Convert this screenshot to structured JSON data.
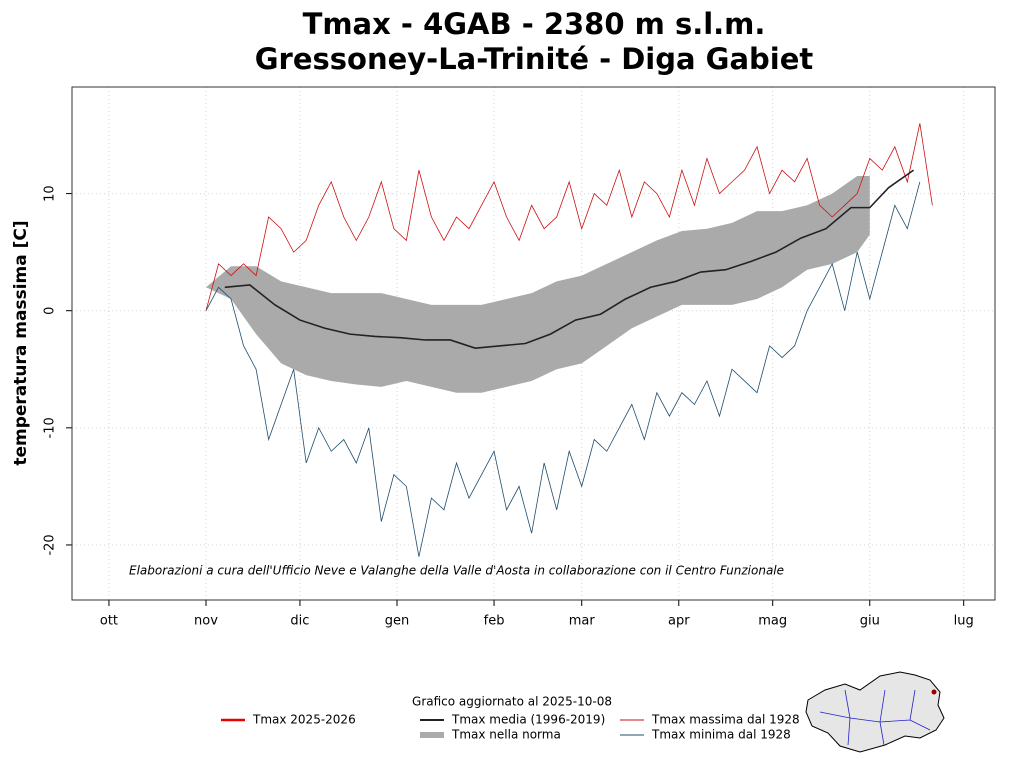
{
  "chart_data": {
    "type": "line",
    "title": "Tmax - 4GAB - 2380 m s.l.m.",
    "subtitle": "Gressoney-La-Trinité - Diga Gabiet",
    "ylabel": "temperatura massima [C]",
    "annotation": "Elaborazioni a cura dell'Ufficio Neve e Valanghe della Valle d'Aosta in collaborazione con il Centro Funzionale",
    "update_note": "Grafico aggiornato al 2025-10-08",
    "xlim": [
      -11.8,
      283
    ],
    "ylim": [
      -24.7,
      19.1
    ],
    "xticks": [
      {
        "value": 0,
        "label": "ott"
      },
      {
        "value": 31,
        "label": "nov"
      },
      {
        "value": 61,
        "label": "dic"
      },
      {
        "value": 92,
        "label": "gen"
      },
      {
        "value": 123,
        "label": "feb"
      },
      {
        "value": 151,
        "label": "mar"
      },
      {
        "value": 182,
        "label": "apr"
      },
      {
        "value": 212,
        "label": "mag"
      },
      {
        "value": 243,
        "label": "giu"
      },
      {
        "value": 273,
        "label": "lug"
      }
    ],
    "yticks": [
      -20,
      -10,
      0,
      10
    ],
    "grid": true,
    "band": {
      "name": "Tmax nella norma",
      "color": "#aaaaaa",
      "x": [
        31,
        39,
        47,
        55,
        63,
        71,
        79,
        87,
        95,
        103,
        111,
        119,
        127,
        135,
        143,
        151,
        159,
        167,
        175,
        183,
        191,
        199,
        207,
        215,
        223,
        231,
        239,
        243
      ],
      "upper": [
        2,
        3.8,
        3.8,
        2.5,
        2,
        1.5,
        1.5,
        1.5,
        1,
        0.5,
        0.5,
        0.5,
        1,
        1.5,
        2.5,
        3,
        4,
        5,
        6,
        6.8,
        7,
        7.5,
        8.5,
        8.5,
        9,
        10,
        11.5,
        11.5
      ],
      "lower": [
        2,
        1,
        -2,
        -4.5,
        -5.5,
        -6,
        -6.3,
        -6.5,
        -6,
        -6.5,
        -7,
        -7,
        -6.5,
        -6,
        -5,
        -4.5,
        -3,
        -1.5,
        -0.5,
        0.5,
        0.5,
        0.5,
        1,
        2,
        3.5,
        4,
        5,
        6.5
      ]
    },
    "series": [
      {
        "name": "Tmax 2025-2026",
        "color": "#ee0000",
        "x": [],
        "values": []
      },
      {
        "name": "Tmax media (1996-2019)",
        "color": "#222222",
        "x": [
          37,
          45,
          53,
          61,
          69,
          77,
          85,
          93,
          101,
          109,
          117,
          125,
          133,
          141,
          149,
          157,
          165,
          173,
          181,
          189,
          197,
          205,
          213,
          221,
          229,
          237,
          243,
          249,
          257
        ],
        "values": [
          2,
          2.2,
          0.5,
          -0.8,
          -1.5,
          -2,
          -2.2,
          -2.3,
          -2.5,
          -2.5,
          -3.2,
          -3,
          -2.8,
          -2,
          -0.8,
          -0.3,
          1,
          2,
          2.5,
          3.3,
          3.5,
          4.2,
          5,
          6.2,
          7,
          8.8,
          8.8,
          10.5,
          12
        ]
      },
      {
        "name": "Tmax massima dal 1928",
        "color": "#cc1111",
        "x": [
          31,
          35,
          39,
          43,
          47,
          51,
          55,
          59,
          63,
          67,
          71,
          75,
          79,
          83,
          87,
          91,
          95,
          99,
          103,
          107,
          111,
          115,
          119,
          123,
          127,
          131,
          135,
          139,
          143,
          147,
          151,
          155,
          159,
          163,
          167,
          171,
          175,
          179,
          183,
          187,
          191,
          195,
          199,
          203,
          207,
          211,
          215,
          219,
          223,
          227,
          231,
          235,
          239,
          243,
          247,
          251,
          255,
          259,
          263
        ],
        "values": [
          0,
          4,
          3,
          4,
          3,
          8,
          7,
          5,
          6,
          9,
          11,
          8,
          6,
          8,
          11,
          7,
          6,
          12,
          8,
          6,
          8,
          7,
          9,
          11,
          8,
          6,
          9,
          7,
          8,
          11,
          7,
          10,
          9,
          12,
          8,
          11,
          10,
          8,
          12,
          9,
          13,
          10,
          11,
          12,
          14,
          10,
          12,
          11,
          13,
          9,
          8,
          9,
          10,
          13,
          12,
          14,
          11,
          16,
          9
        ]
      },
      {
        "name": "Tmax minima dal 1928",
        "color": "#1f4e6e",
        "x": [
          31,
          35,
          39,
          43,
          47,
          51,
          55,
          59,
          63,
          67,
          71,
          75,
          79,
          83,
          87,
          91,
          95,
          99,
          103,
          107,
          111,
          115,
          119,
          123,
          127,
          131,
          135,
          139,
          143,
          147,
          151,
          155,
          159,
          163,
          167,
          171,
          175,
          179,
          183,
          187,
          191,
          195,
          199,
          203,
          207,
          211,
          215,
          219,
          223,
          227,
          231,
          235,
          239,
          243,
          247,
          251,
          255,
          259
        ],
        "values": [
          0,
          2,
          1,
          -3,
          -5,
          -11,
          -8,
          -5,
          -13,
          -10,
          -12,
          -11,
          -13,
          -10,
          -18,
          -14,
          -15,
          -21,
          -16,
          -17,
          -13,
          -16,
          -14,
          -12,
          -17,
          -15,
          -19,
          -13,
          -17,
          -12,
          -15,
          -11,
          -12,
          -10,
          -8,
          -11,
          -7,
          -9,
          -7,
          -8,
          -6,
          -9,
          -5,
          -6,
          -7,
          -3,
          -4,
          -3,
          0,
          2,
          4,
          0,
          5,
          1,
          5,
          9,
          7,
          11
        ]
      }
    ]
  }
}
